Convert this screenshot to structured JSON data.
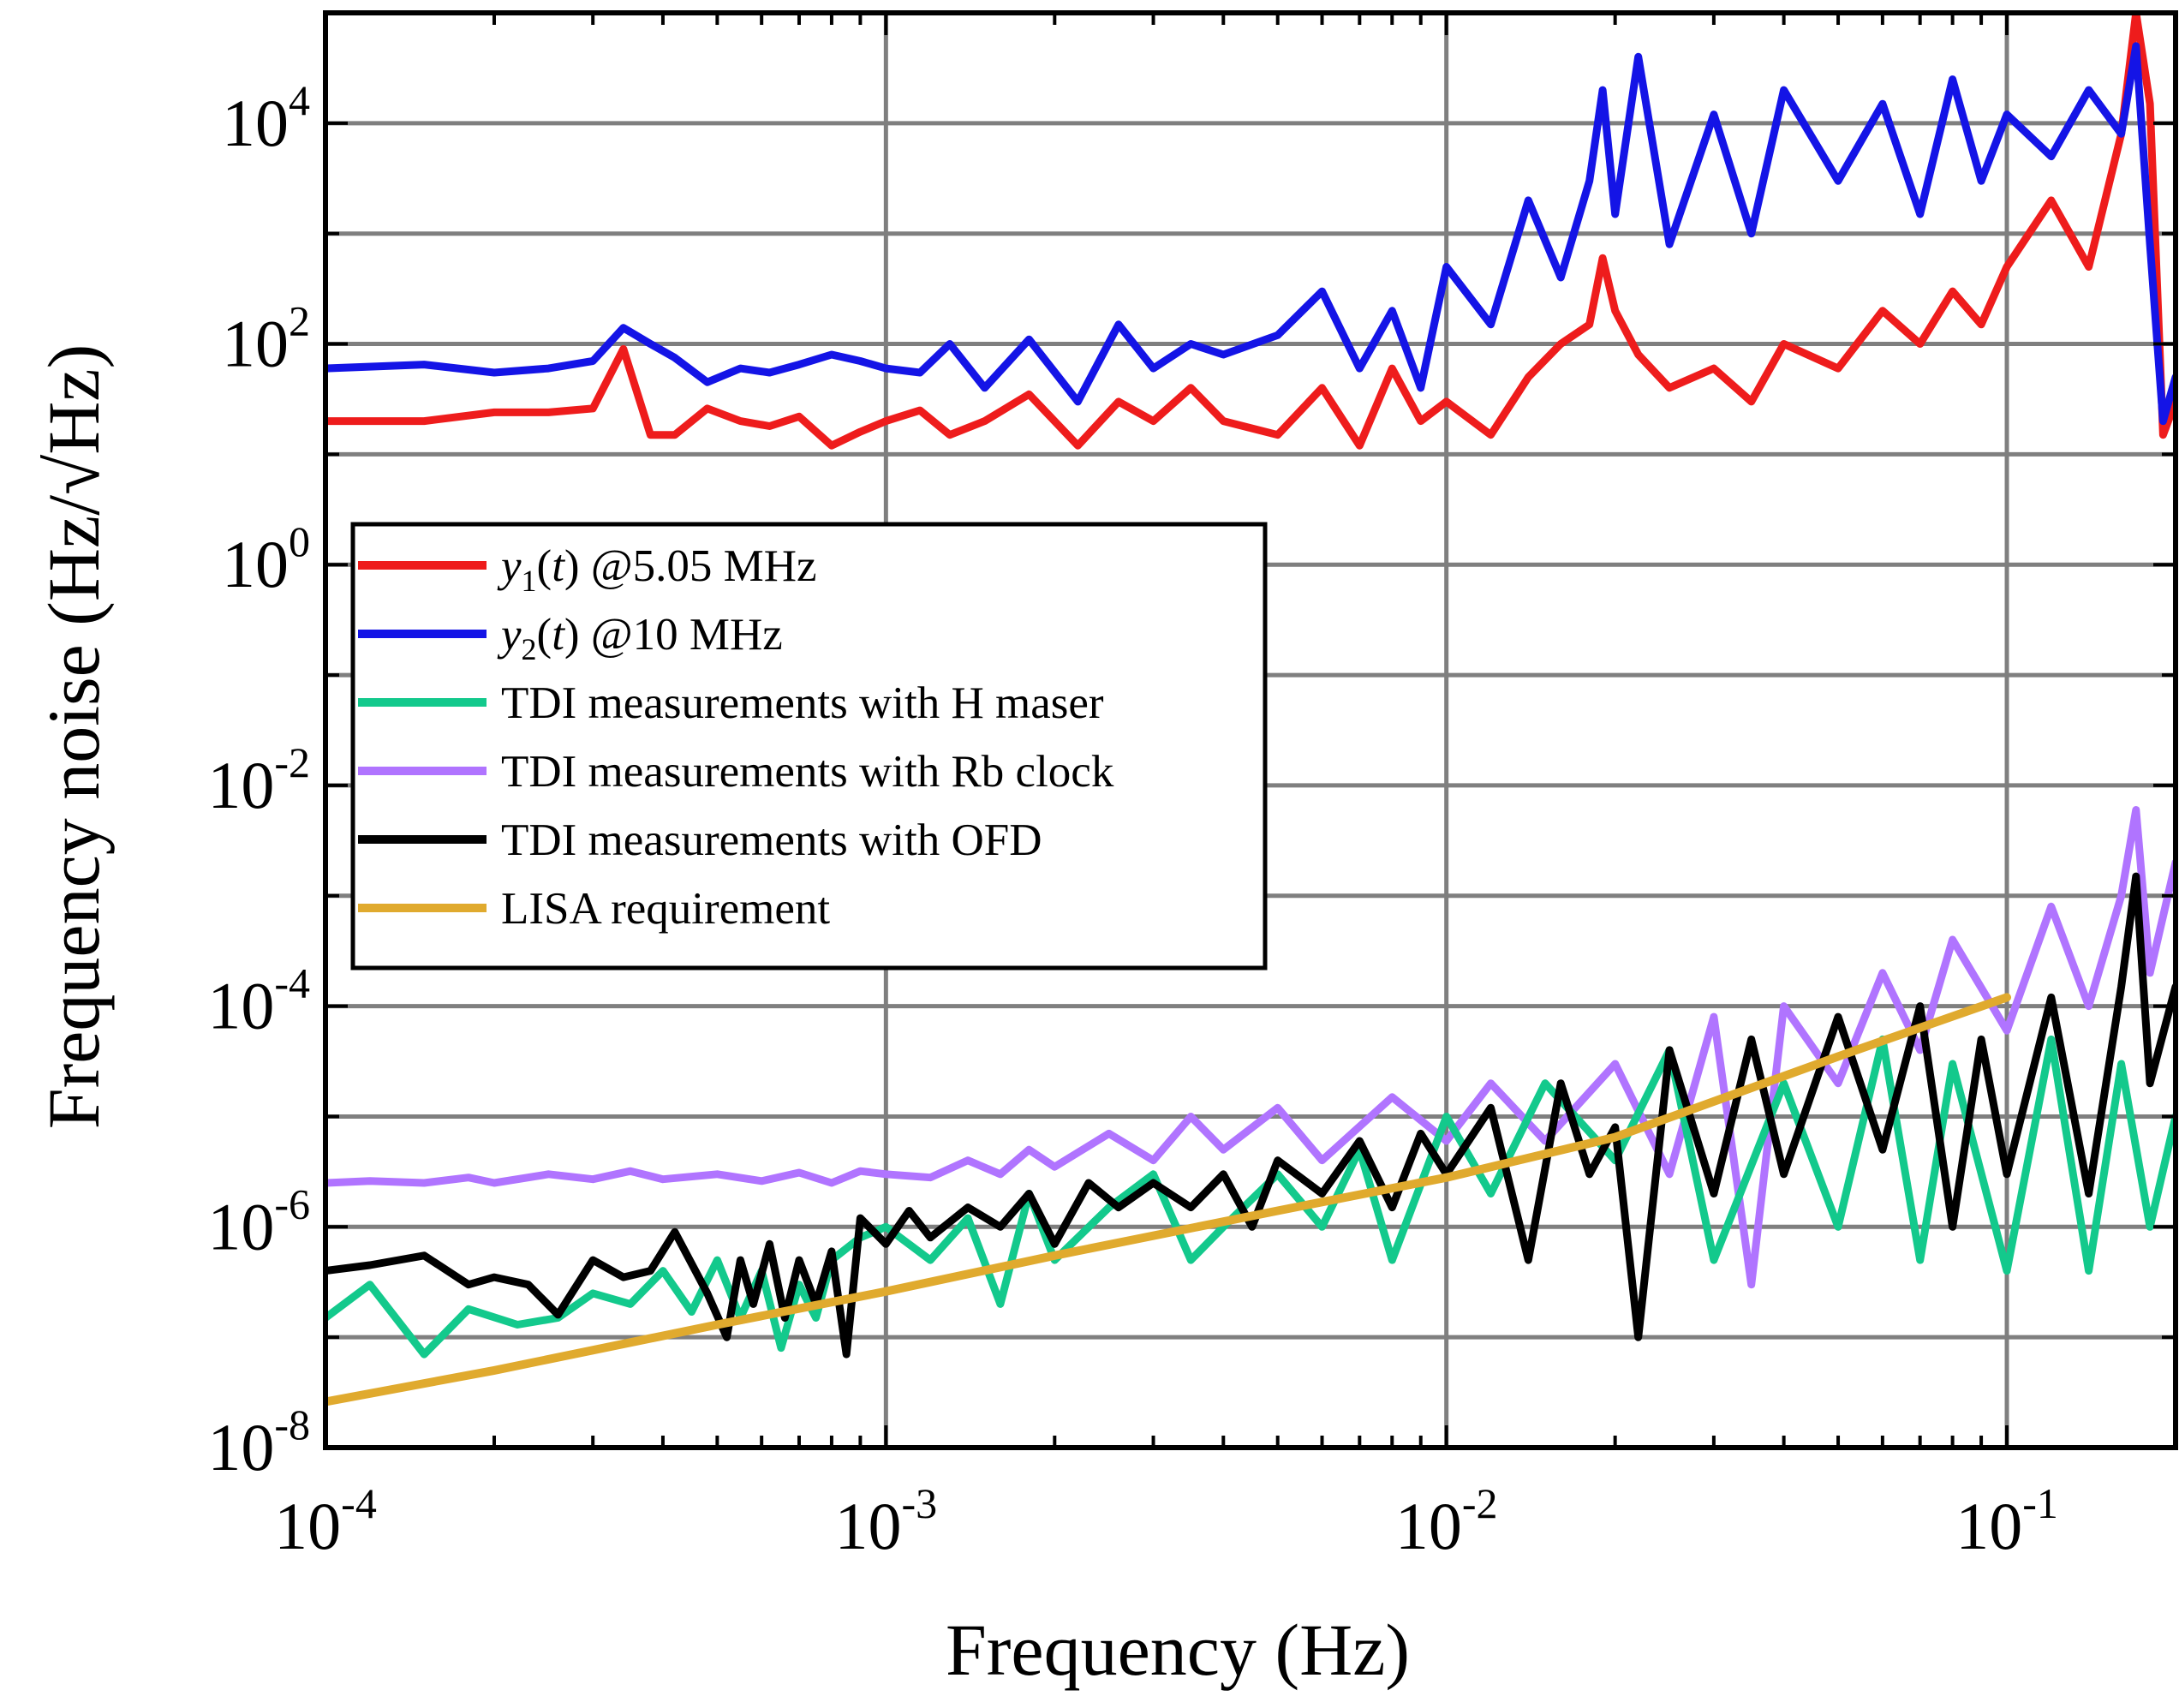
{
  "chart_data": {
    "type": "line",
    "xlabel": "Frequency (Hz)",
    "ylabel": "Frequency noise (Hz/√Hz)",
    "x_scale": "log",
    "y_scale": "log",
    "xlim": [
      0.0001,
      0.2
    ],
    "ylim": [
      1e-08,
      100000
    ],
    "grid": true,
    "legend_placement": "upper-left (inside)",
    "x_ticks": [
      {
        "value": 0.0001,
        "base": "10",
        "exp": "-4"
      },
      {
        "value": 0.001,
        "base": "10",
        "exp": "-3"
      },
      {
        "value": 0.01,
        "base": "10",
        "exp": "-2"
      },
      {
        "value": 0.1,
        "base": "10",
        "exp": "-1"
      }
    ],
    "y_ticks": [
      {
        "value": 1e-08,
        "base": "10",
        "exp": "-8"
      },
      {
        "value": 1e-06,
        "base": "10",
        "exp": "-6"
      },
      {
        "value": 0.0001,
        "base": "10",
        "exp": "-4"
      },
      {
        "value": 0.01,
        "base": "10",
        "exp": "-2"
      },
      {
        "value": 1,
        "base": "10",
        "exp": "0"
      },
      {
        "value": 100,
        "base": "10",
        "exp": "2"
      },
      {
        "value": 10000,
        "base": "10",
        "exp": "4"
      }
    ],
    "series": [
      {
        "name": "y1(t) @5.05 MHz",
        "legend": {
          "var": "y",
          "sub": "1",
          "arg": "(t)",
          "rest": " @5.05 MHz"
        },
        "color": "#ee1c1c",
        "x": [
          0.0001,
          0.00015,
          0.0002,
          0.00025,
          0.0003,
          0.00034,
          0.00038,
          0.00042,
          0.00048,
          0.00055,
          0.00062,
          0.0007,
          0.0008,
          0.0009,
          0.001,
          0.00115,
          0.0013,
          0.0015,
          0.0018,
          0.0022,
          0.0026,
          0.003,
          0.0035,
          0.004,
          0.005,
          0.006,
          0.007,
          0.008,
          0.009,
          0.01,
          0.012,
          0.014,
          0.016,
          0.018,
          0.019,
          0.02,
          0.022,
          0.025,
          0.03,
          0.035,
          0.04,
          0.05,
          0.06,
          0.07,
          0.08,
          0.09,
          0.1,
          0.12,
          0.14,
          0.16,
          0.17,
          0.18,
          0.19,
          0.2
        ],
        "values": [
          20,
          20,
          24,
          24,
          26,
          90,
          15,
          15,
          26,
          20,
          18,
          22,
          12,
          16,
          20,
          25,
          15,
          20,
          35,
          12,
          30,
          20,
          40,
          20,
          15,
          40,
          12,
          60,
          20,
          30,
          15,
          50,
          100,
          150,
          600,
          200,
          80,
          40,
          60,
          30,
          100,
          60,
          200,
          100,
          300,
          150,
          500,
          2000,
          500,
          8000,
          100000,
          15000,
          15,
          30
        ]
      },
      {
        "name": "y2(t) @10 MHz",
        "legend": {
          "var": "y",
          "sub": "2",
          "arg": "(t)",
          "rest": " @10 MHz"
        },
        "color": "#1414e6",
        "x": [
          0.0001,
          0.00015,
          0.0002,
          0.00025,
          0.0003,
          0.00034,
          0.00038,
          0.00042,
          0.00048,
          0.00055,
          0.00062,
          0.0007,
          0.0008,
          0.0009,
          0.001,
          0.00115,
          0.0013,
          0.0015,
          0.0018,
          0.0022,
          0.0026,
          0.003,
          0.0035,
          0.004,
          0.005,
          0.006,
          0.007,
          0.008,
          0.009,
          0.01,
          0.012,
          0.014,
          0.016,
          0.018,
          0.019,
          0.02,
          0.022,
          0.025,
          0.03,
          0.035,
          0.04,
          0.05,
          0.06,
          0.07,
          0.08,
          0.09,
          0.1,
          0.12,
          0.14,
          0.16,
          0.17,
          0.18,
          0.19,
          0.2
        ],
        "values": [
          60,
          65,
          55,
          60,
          70,
          140,
          100,
          75,
          45,
          60,
          55,
          65,
          80,
          70,
          60,
          55,
          100,
          40,
          110,
          30,
          150,
          60,
          100,
          80,
          120,
          300,
          60,
          200,
          40,
          500,
          150,
          2000,
          400,
          3000,
          20000,
          1500,
          40000,
          800,
          12000,
          1000,
          20000,
          3000,
          15000,
          1500,
          25000,
          3000,
          12000,
          5000,
          20000,
          8000,
          50000,
          800,
          20,
          50
        ]
      },
      {
        "name": "TDI measurements with H maser",
        "legend": {
          "var": "",
          "sub": "",
          "arg": "",
          "rest": "TDI measurements with H maser"
        },
        "color": "#13c98c",
        "x": [
          0.0001,
          0.00012,
          0.00015,
          0.00018,
          0.00022,
          0.00026,
          0.0003,
          0.00035,
          0.0004,
          0.00045,
          0.0005,
          0.00055,
          0.0006,
          0.00065,
          0.0007,
          0.00075,
          0.0008,
          0.0009,
          0.001,
          0.0012,
          0.0014,
          0.0016,
          0.0018,
          0.002,
          0.0025,
          0.003,
          0.0035,
          0.004,
          0.005,
          0.006,
          0.007,
          0.008,
          0.01,
          0.012,
          0.015,
          0.02,
          0.025,
          0.03,
          0.04,
          0.05,
          0.06,
          0.07,
          0.08,
          0.1,
          0.12,
          0.14,
          0.16,
          0.18,
          0.2
        ],
        "values": [
          1.5e-07,
          3e-07,
          7e-08,
          1.8e-07,
          1.3e-07,
          1.5e-07,
          2.5e-07,
          2e-07,
          4e-07,
          1.7e-07,
          5e-07,
          1.5e-07,
          4e-07,
          8e-08,
          3e-07,
          1.5e-07,
          5e-07,
          8e-07,
          1e-06,
          5e-07,
          1.2e-06,
          2e-07,
          2e-06,
          5e-07,
          1.5e-06,
          3e-06,
          5e-07,
          1e-06,
          3e-06,
          1e-06,
          5e-06,
          5e-07,
          1e-05,
          2e-06,
          2e-05,
          4e-06,
          4e-05,
          5e-07,
          2e-05,
          1e-06,
          5e-05,
          5e-07,
          3e-05,
          4e-07,
          5e-05,
          4e-07,
          3e-05,
          1e-06,
          1e-05
        ]
      },
      {
        "name": "TDI measurements with Rb clock",
        "legend": {
          "var": "",
          "sub": "",
          "arg": "",
          "rest": "TDI measurements with Rb clock"
        },
        "color": "#b074ff",
        "x": [
          0.0001,
          0.00012,
          0.00015,
          0.00018,
          0.0002,
          0.00025,
          0.0003,
          0.00035,
          0.0004,
          0.0005,
          0.0006,
          0.0007,
          0.0008,
          0.0009,
          0.001,
          0.0012,
          0.0014,
          0.0016,
          0.0018,
          0.002,
          0.0025,
          0.003,
          0.0035,
          0.004,
          0.005,
          0.006,
          0.008,
          0.01,
          0.012,
          0.015,
          0.02,
          0.025,
          0.03,
          0.035,
          0.04,
          0.05,
          0.06,
          0.07,
          0.08,
          0.1,
          0.12,
          0.14,
          0.16,
          0.17,
          0.18,
          0.2
        ],
        "values": [
          2.5e-06,
          2.6e-06,
          2.5e-06,
          2.8e-06,
          2.5e-06,
          3e-06,
          2.7e-06,
          3.2e-06,
          2.7e-06,
          3e-06,
          2.6e-06,
          3.1e-06,
          2.5e-06,
          3.2e-06,
          3e-06,
          2.8e-06,
          4e-06,
          3e-06,
          5e-06,
          3.5e-06,
          7e-06,
          4e-06,
          1e-05,
          5e-06,
          1.2e-05,
          4e-06,
          1.5e-05,
          6e-06,
          2e-05,
          6e-06,
          3e-05,
          3e-06,
          8e-05,
          3e-07,
          0.0001,
          2e-05,
          0.0002,
          4e-05,
          0.0004,
          6e-05,
          0.0008,
          0.0001,
          0.001,
          0.006,
          0.0002,
          0.002
        ]
      },
      {
        "name": "TDI measurements with OFD",
        "legend": {
          "var": "",
          "sub": "",
          "arg": "",
          "rest": "TDI measurements with OFD"
        },
        "color": "#000000",
        "x": [
          0.0001,
          0.00012,
          0.00015,
          0.00018,
          0.0002,
          0.00023,
          0.00026,
          0.0003,
          0.00034,
          0.00038,
          0.00042,
          0.00048,
          0.00052,
          0.00055,
          0.00058,
          0.00062,
          0.00066,
          0.0007,
          0.00075,
          0.0008,
          0.00085,
          0.0009,
          0.001,
          0.0011,
          0.0012,
          0.0014,
          0.0016,
          0.0018,
          0.002,
          0.0023,
          0.0026,
          0.003,
          0.0035,
          0.004,
          0.0045,
          0.005,
          0.006,
          0.007,
          0.008,
          0.009,
          0.01,
          0.012,
          0.014,
          0.016,
          0.018,
          0.02,
          0.022,
          0.025,
          0.03,
          0.035,
          0.04,
          0.05,
          0.06,
          0.07,
          0.08,
          0.09,
          0.1,
          0.12,
          0.14,
          0.16,
          0.17,
          0.18,
          0.2
        ],
        "values": [
          4e-07,
          4.5e-07,
          5.5e-07,
          3e-07,
          3.5e-07,
          3e-07,
          1.6e-07,
          5e-07,
          3.5e-07,
          4e-07,
          9e-07,
          2.5e-07,
          1e-07,
          5e-07,
          2e-07,
          7e-07,
          1.5e-07,
          5e-07,
          2e-07,
          6e-07,
          7e-08,
          1.2e-06,
          7e-07,
          1.4e-06,
          8e-07,
          1.5e-06,
          1e-06,
          2e-06,
          7e-07,
          2.5e-06,
          1.5e-06,
          2.5e-06,
          1.5e-06,
          3e-06,
          1e-06,
          4e-06,
          2e-06,
          6e-06,
          1.5e-06,
          7e-06,
          3e-06,
          1.2e-05,
          5e-07,
          2e-05,
          3e-06,
          8e-06,
          1e-07,
          4e-05,
          2e-06,
          5e-05,
          3e-06,
          8e-05,
          5e-06,
          0.0001,
          1e-06,
          5e-05,
          3e-06,
          0.00012,
          2e-06,
          0.00015,
          0.0015,
          2e-05,
          0.00015
        ]
      },
      {
        "name": "LISA requirement",
        "legend": {
          "var": "",
          "sub": "",
          "arg": "",
          "rest": "LISA requirement"
        },
        "color": "#e0aa2e",
        "x": [
          0.0001,
          0.0002,
          0.0005,
          0.001,
          0.002,
          0.005,
          0.01,
          0.02,
          0.05,
          0.1
        ],
        "values": [
          2.6e-08,
          5e-08,
          1.3e-07,
          2.6e-07,
          5.5e-07,
          1.4e-06,
          2.8e-06,
          6.5e-06,
          3.5e-05,
          0.00012
        ]
      }
    ]
  }
}
